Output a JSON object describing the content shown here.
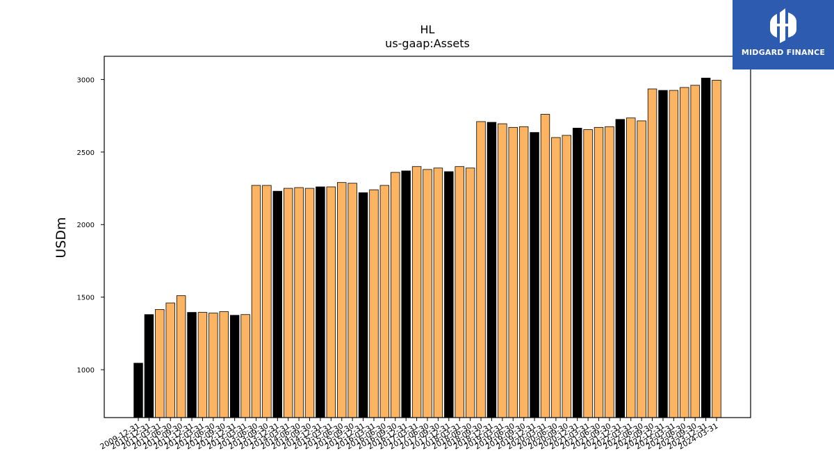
{
  "logo": {
    "text": "MIDGARD FINANCE",
    "color": "#2d5bb0"
  },
  "chart_data": {
    "type": "bar",
    "title": "HL",
    "subtitle": "us-gaap:Assets",
    "ylabel": "USDm",
    "xlabel": "",
    "ylim": [
      670,
      3160
    ],
    "yticks": [
      1000,
      1500,
      2000,
      2500,
      3000
    ],
    "colors": {
      "annual": "#000000",
      "quarterly": "#fdb462"
    },
    "categories": [
      "2009-12-31",
      "2010-12-31",
      "2011-03-31",
      "2011-06-30",
      "2011-09-30",
      "2011-12-31",
      "2012-03-31",
      "2012-06-30",
      "2012-09-30",
      "2012-12-31",
      "2013-03-31",
      "2013-06-30",
      "2013-09-30",
      "2013-12-31",
      "2014-03-31",
      "2014-06-30",
      "2014-09-30",
      "2014-12-31",
      "2015-03-31",
      "2015-06-30",
      "2015-09-30",
      "2015-12-31",
      "2016-03-31",
      "2016-06-30",
      "2016-09-30",
      "2016-12-31",
      "2017-03-31",
      "2017-06-30",
      "2017-09-30",
      "2017-12-31",
      "2018-03-31",
      "2018-06-30",
      "2018-09-30",
      "2018-12-31",
      "2019-03-31",
      "2019-06-30",
      "2019-09-30",
      "2019-12-31",
      "2020-03-31",
      "2020-06-30",
      "2020-09-30",
      "2020-12-31",
      "2021-03-31",
      "2021-06-30",
      "2021-09-30",
      "2021-12-31",
      "2022-03-31",
      "2022-06-30",
      "2022-09-30",
      "2022-12-31",
      "2023-03-31",
      "2023-06-30",
      "2023-09-30",
      "2023-12-31",
      "2024-03-31"
    ],
    "values": [
      1045,
      1380,
      1415,
      1460,
      1510,
      1395,
      1395,
      1390,
      1400,
      1375,
      1380,
      2270,
      2270,
      2230,
      2250,
      2255,
      2250,
      2260,
      2260,
      2290,
      2285,
      2220,
      2240,
      2270,
      2360,
      2370,
      2400,
      2380,
      2390,
      2365,
      2400,
      2390,
      2710,
      2705,
      2695,
      2670,
      2675,
      2635,
      2760,
      2600,
      2615,
      2665,
      2655,
      2670,
      2675,
      2725,
      2735,
      2715,
      2935,
      2925,
      2925,
      2945,
      2960,
      3010,
      2995
    ],
    "annual": [
      true,
      true,
      false,
      false,
      false,
      true,
      false,
      false,
      false,
      true,
      false,
      false,
      false,
      true,
      false,
      false,
      false,
      true,
      false,
      false,
      false,
      true,
      false,
      false,
      false,
      true,
      false,
      false,
      false,
      true,
      false,
      false,
      false,
      true,
      false,
      false,
      false,
      true,
      false,
      false,
      false,
      true,
      false,
      false,
      false,
      true,
      false,
      false,
      false,
      true,
      false,
      false,
      false,
      true,
      false
    ]
  }
}
